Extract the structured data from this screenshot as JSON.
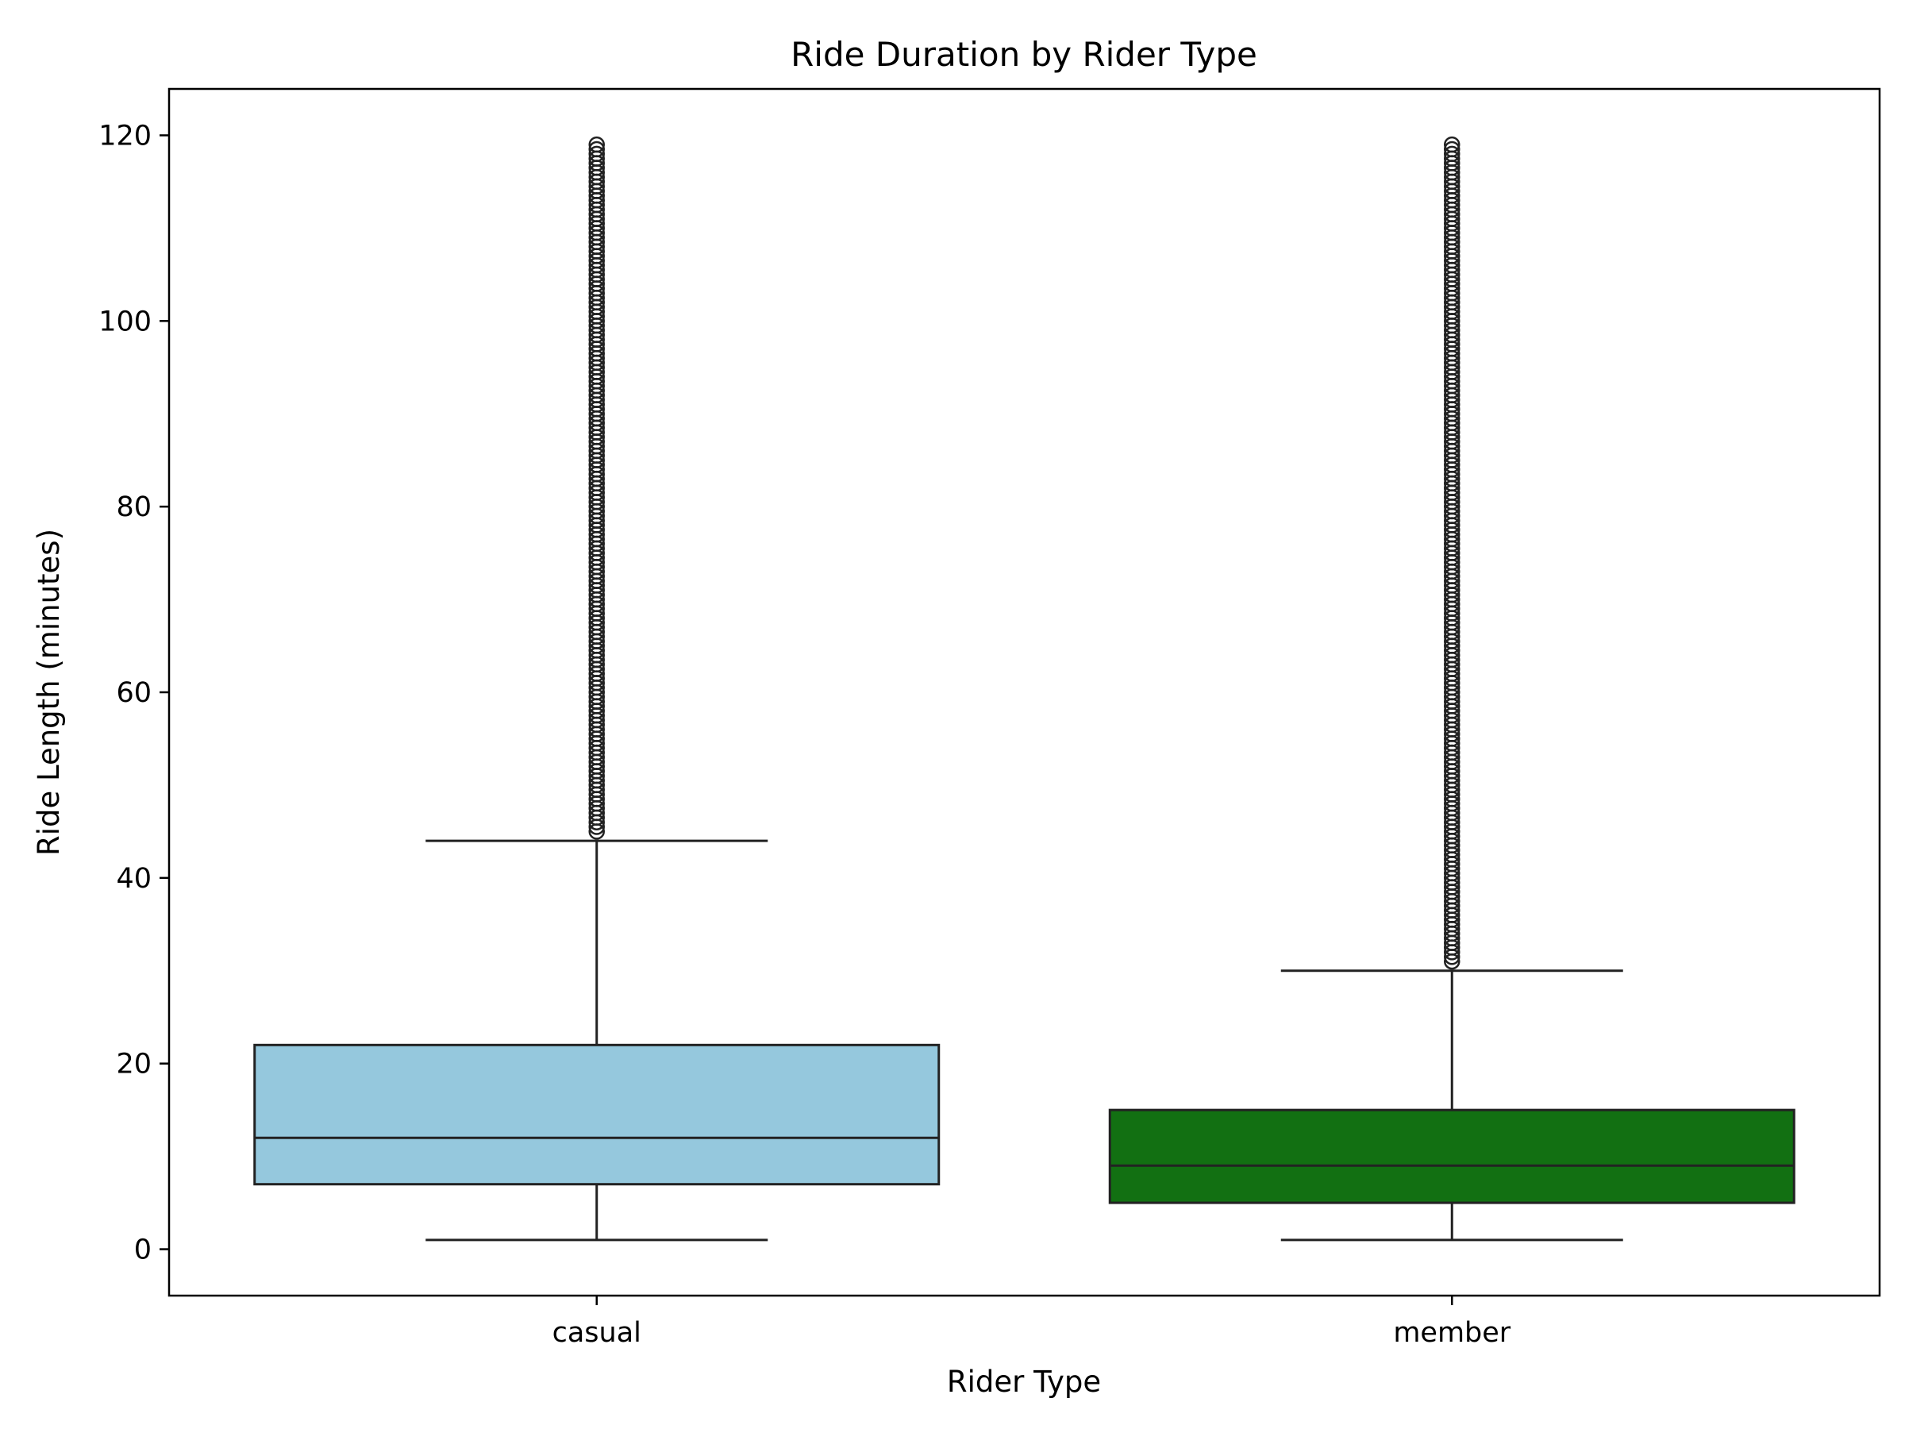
{
  "chart_data": {
    "type": "box",
    "title": "Ride Duration by Rider Type",
    "xlabel": "Rider Type",
    "ylabel": "Ride Length (minutes)",
    "ylim": [
      -5,
      125
    ],
    "yticks": [
      0,
      20,
      40,
      60,
      80,
      100,
      120
    ],
    "grid": false,
    "categories": [
      "casual",
      "member"
    ],
    "boxes": [
      {
        "category": "casual",
        "color": "#95c8dd",
        "whisker_low": 1,
        "q1": 7,
        "median": 12,
        "q3": 22,
        "whisker_high": 44,
        "outlier_range": [
          45,
          119
        ]
      },
      {
        "category": "member",
        "color": "#127012",
        "whisker_low": 1,
        "q1": 5,
        "median": 9,
        "q3": 15,
        "whisker_high": 30,
        "outlier_range": [
          31,
          119
        ]
      }
    ]
  }
}
